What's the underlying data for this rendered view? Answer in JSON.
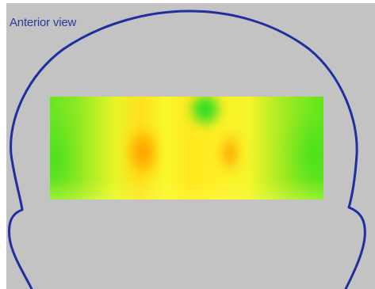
{
  "view": {
    "label": "Anterior view"
  },
  "colors": {
    "background": "#c3c3c3",
    "head_outline": "#1f2fa0",
    "label_text": "#2a3a9a",
    "map_low": "#5ee61c",
    "map_mid": "#ffff22",
    "map_high": "#ff9500",
    "map_min": "#00d82a"
  },
  "map": {
    "type": "scalp-topography",
    "scale": [
      "map_min",
      "map_low",
      "map_mid",
      "map_high"
    ]
  }
}
